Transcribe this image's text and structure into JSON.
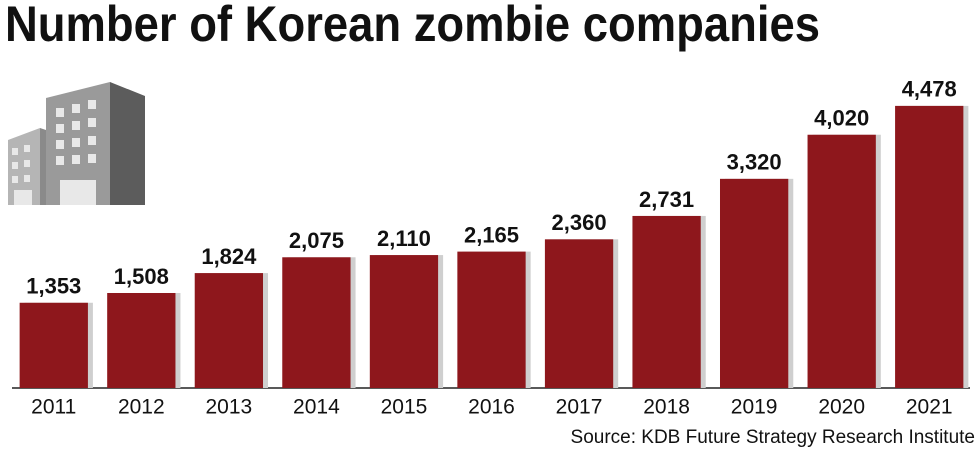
{
  "chart_data": {
    "type": "bar",
    "title": "Number of Korean zombie companies",
    "categories": [
      "2011",
      "2012",
      "2013",
      "2014",
      "2015",
      "2016",
      "2017",
      "2018",
      "2019",
      "2020",
      "2021"
    ],
    "values": [
      1353,
      1508,
      1824,
      2075,
      2110,
      2165,
      2360,
      2731,
      3320,
      4020,
      4478
    ],
    "value_labels": [
      "1,353",
      "1,508",
      "1,824",
      "2,075",
      "2,110",
      "2,165",
      "2,360",
      "2,731",
      "3,320",
      "4,020",
      "4,478"
    ],
    "color": "#8e171c",
    "ylim": [
      0,
      6000
    ],
    "source": "Source: KDB Future Strategy Research Institute"
  }
}
